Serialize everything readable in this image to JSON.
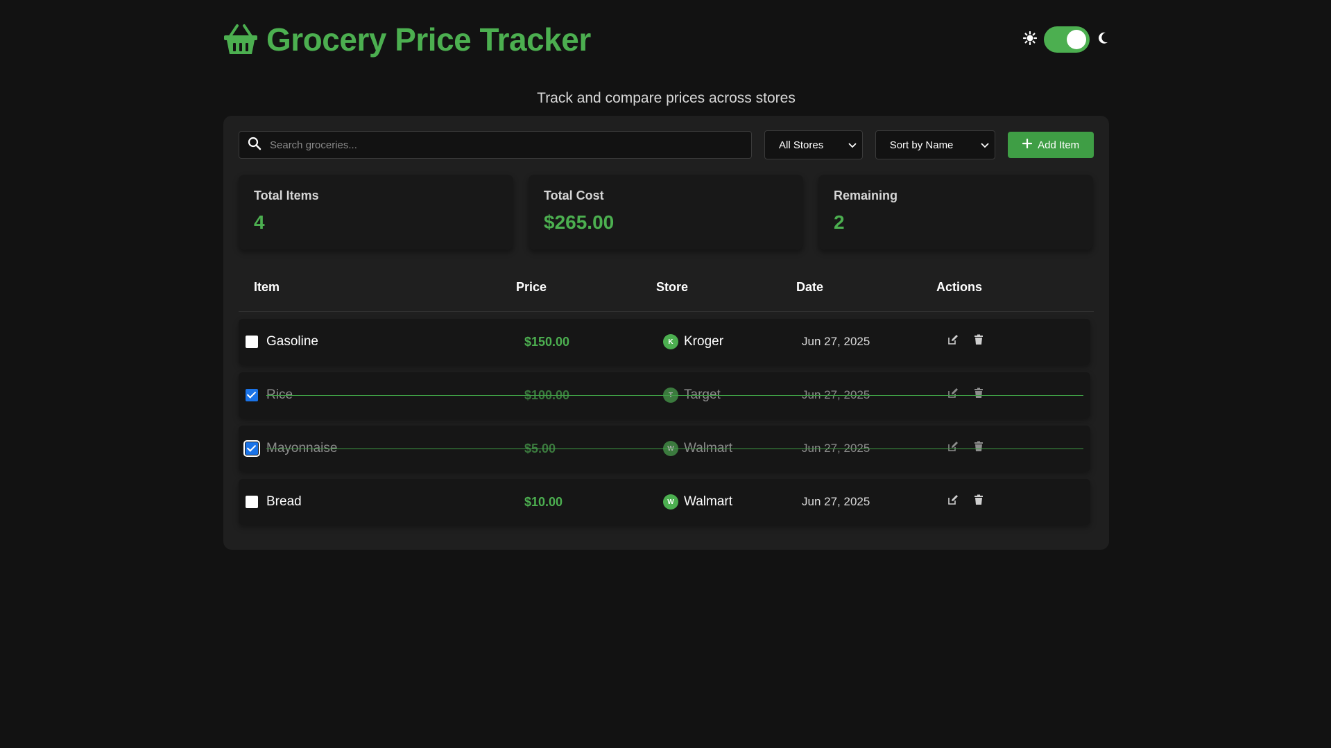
{
  "header": {
    "title": "Grocery Price Tracker",
    "subtitle": "Track and compare prices across stores",
    "logo_icon": "basket-icon",
    "theme": {
      "light_icon": "sun-icon",
      "dark_icon": "moon-icon",
      "dark_mode": true
    }
  },
  "toolbar": {
    "search_placeholder": "Search groceries...",
    "store_filter": "All Stores",
    "sort": "Sort by Name",
    "add_label": "Add Item"
  },
  "stats": [
    {
      "label": "Total Items",
      "value": "4"
    },
    {
      "label": "Total Cost",
      "value": "$265.00"
    },
    {
      "label": "Remaining",
      "value": "2"
    }
  ],
  "table": {
    "headers": {
      "item": "Item",
      "price": "Price",
      "store": "Store",
      "date": "Date",
      "actions": "Actions"
    },
    "rows": [
      {
        "name": "Gasoline",
        "price": "$150.00",
        "store": "Kroger",
        "store_initial": "K",
        "date": "Jun 27, 2025",
        "checked": false
      },
      {
        "name": "Rice",
        "price": "$100.00",
        "store": "Target",
        "store_initial": "T",
        "date": "Jun 27, 2025",
        "checked": true
      },
      {
        "name": "Mayonnaise",
        "price": "$5.00",
        "store": "Walmart",
        "store_initial": "W",
        "date": "Jun 27, 2025",
        "checked": true
      },
      {
        "name": "Bread",
        "price": "$10.00",
        "store": "Walmart",
        "store_initial": "W",
        "date": "Jun 27, 2025",
        "checked": false
      }
    ]
  },
  "colors": {
    "accent": "#4caf50",
    "background": "#121212",
    "panel": "#1f1f1f"
  }
}
